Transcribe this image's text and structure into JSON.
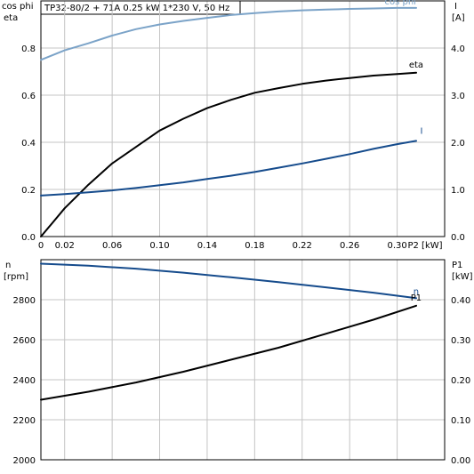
{
  "chart_data": [
    {
      "type": "line",
      "title": "TP32-80/2 + 71A   0.25 kW   1*230 V, 50 Hz",
      "xlabel": "P2 [kW]",
      "xlim": [
        0,
        0.34
      ],
      "x_ticks": [
        0,
        0.02,
        0.06,
        0.1,
        0.14,
        0.18,
        0.22,
        0.26,
        0.3
      ],
      "x_tick_labels": [
        "0",
        "0.02",
        "0.06",
        "0.10",
        "0.14",
        "0.18",
        "0.22",
        "0.26",
        "0.30"
      ],
      "y_left": {
        "label_line1": "cos phi",
        "label_line2": "eta",
        "ylim": [
          0,
          1.0
        ],
        "ticks": [
          0,
          0.2,
          0.4,
          0.6,
          0.8
        ],
        "tick_labels": [
          "0.0",
          "0.2",
          "0.4",
          "0.6",
          "0.8"
        ]
      },
      "y_right": {
        "label_line1": "I",
        "label_line2": "[A]",
        "ylim": [
          0,
          5.0
        ],
        "ticks": [
          0,
          1,
          2,
          3,
          4
        ],
        "tick_labels": [
          "0.0",
          "1.0",
          "2.0",
          "3.0",
          "4.0"
        ]
      },
      "grid": true,
      "series": [
        {
          "name": "cos phi",
          "axis": "left",
          "color": "#7ba3c8",
          "x": [
            0,
            0.02,
            0.04,
            0.06,
            0.08,
            0.1,
            0.12,
            0.14,
            0.16,
            0.18,
            0.2,
            0.22,
            0.24,
            0.26,
            0.28,
            0.3,
            0.316
          ],
          "y": [
            0.75,
            0.79,
            0.82,
            0.853,
            0.88,
            0.9,
            0.915,
            0.928,
            0.94,
            0.948,
            0.955,
            0.96,
            0.963,
            0.966,
            0.968,
            0.97,
            0.97
          ]
        },
        {
          "name": "eta",
          "axis": "left",
          "color": "#000000",
          "x": [
            0,
            0.01,
            0.02,
            0.03,
            0.04,
            0.06,
            0.08,
            0.1,
            0.12,
            0.14,
            0.16,
            0.18,
            0.2,
            0.22,
            0.24,
            0.26,
            0.28,
            0.3,
            0.316
          ],
          "y": [
            0,
            0.06,
            0.12,
            0.17,
            0.22,
            0.31,
            0.38,
            0.45,
            0.5,
            0.545,
            0.58,
            0.61,
            0.63,
            0.648,
            0.662,
            0.673,
            0.683,
            0.69,
            0.695
          ]
        },
        {
          "name": "I",
          "axis": "right",
          "color": "#154b8c",
          "x": [
            0,
            0.02,
            0.04,
            0.06,
            0.08,
            0.1,
            0.12,
            0.14,
            0.16,
            0.18,
            0.2,
            0.22,
            0.24,
            0.26,
            0.28,
            0.3,
            0.316
          ],
          "y": [
            0.87,
            0.9,
            0.94,
            0.98,
            1.03,
            1.09,
            1.15,
            1.22,
            1.29,
            1.37,
            1.46,
            1.55,
            1.65,
            1.75,
            1.86,
            1.96,
            2.03
          ]
        }
      ]
    },
    {
      "type": "line",
      "xlim": [
        0,
        0.34
      ],
      "y_left": {
        "label_line1": "n",
        "label_line2": "[rpm]",
        "ylim": [
          2000,
          3000
        ],
        "ticks": [
          2000,
          2200,
          2400,
          2600,
          2800
        ],
        "tick_labels": [
          "2000",
          "2200",
          "2400",
          "2600",
          "2800"
        ]
      },
      "y_right": {
        "label_line1": "P1",
        "label_line2": "[kW]",
        "ylim": [
          0,
          0.5
        ],
        "ticks": [
          0,
          0.1,
          0.2,
          0.3,
          0.4
        ],
        "tick_labels": [
          "0.00",
          "0.10",
          "0.20",
          "0.30",
          "0.40"
        ]
      },
      "grid": true,
      "series": [
        {
          "name": "n",
          "axis": "left",
          "color": "#154b8c",
          "x": [
            0,
            0.04,
            0.08,
            0.12,
            0.16,
            0.2,
            0.24,
            0.28,
            0.316
          ],
          "y": [
            2980,
            2970,
            2955,
            2935,
            2912,
            2888,
            2862,
            2835,
            2808
          ]
        },
        {
          "name": "P1",
          "axis": "right",
          "color": "#000000",
          "x": [
            0,
            0.04,
            0.08,
            0.12,
            0.16,
            0.2,
            0.24,
            0.28,
            0.316
          ],
          "y": [
            0.15,
            0.17,
            0.193,
            0.22,
            0.25,
            0.28,
            0.315,
            0.35,
            0.385
          ]
        }
      ]
    }
  ]
}
